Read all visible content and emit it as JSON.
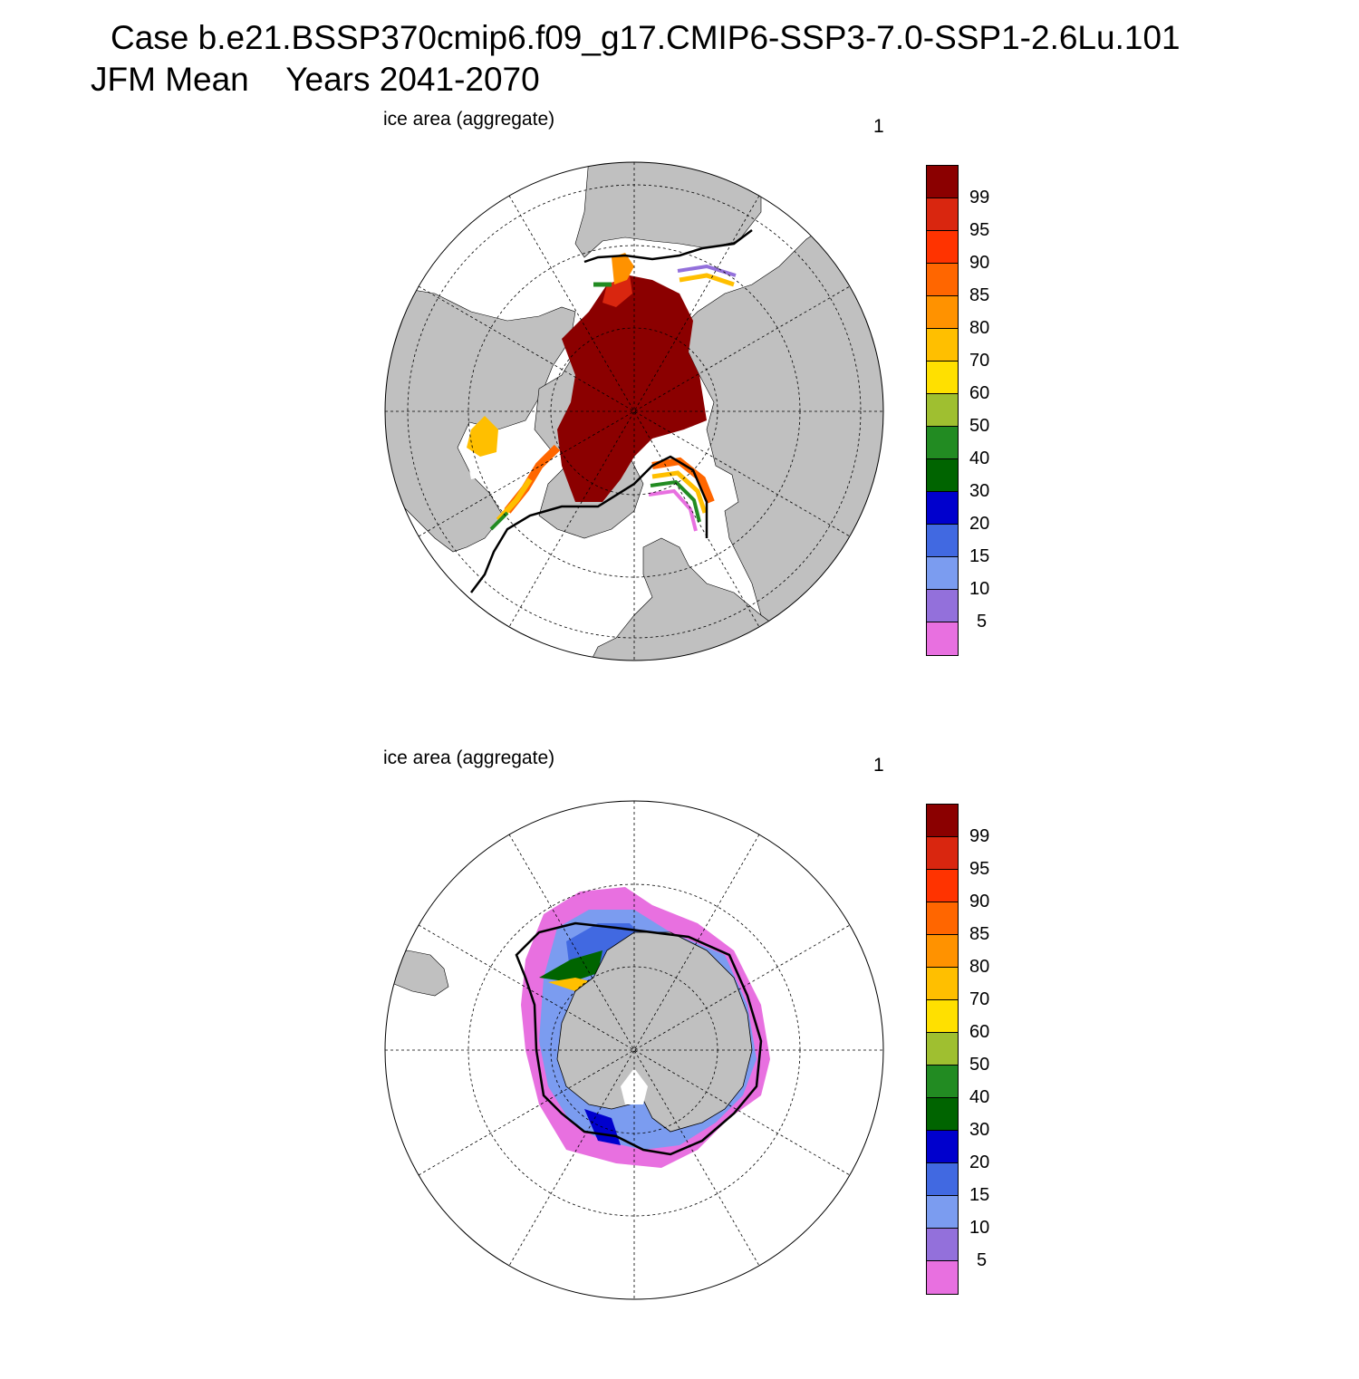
{
  "header": {
    "title_line1": "Case b.e21.BSSP370cmip6.f09_g17.CMIP6-SSP3-7.0-SSP1-2.6Lu.101",
    "season": "JFM Mean",
    "years": "Years 2041-2070"
  },
  "panels": [
    {
      "hemisphere": "north",
      "variable_label": "ice area  (aggregate)",
      "units_label": "1"
    },
    {
      "hemisphere": "south",
      "variable_label": "ice area  (aggregate)",
      "units_label": "1"
    }
  ],
  "colorbar": {
    "labels": [
      "99",
      "95",
      "90",
      "85",
      "80",
      "70",
      "60",
      "50",
      "40",
      "30",
      "20",
      "15",
      "10",
      "5"
    ],
    "colors_top_to_bottom": [
      "#8b0000",
      "#d9260f",
      "#ff3300",
      "#ff6600",
      "#ff9200",
      "#ffbf00",
      "#ffe000",
      "#9fbf30",
      "#228b22",
      "#006400",
      "#0000cd",
      "#4169e1",
      "#7b9cf0",
      "#9370db",
      "#e870e0"
    ]
  },
  "style": {
    "land": "#c0c0c0",
    "ocean": "#ffffff",
    "contour": "#000000"
  }
}
